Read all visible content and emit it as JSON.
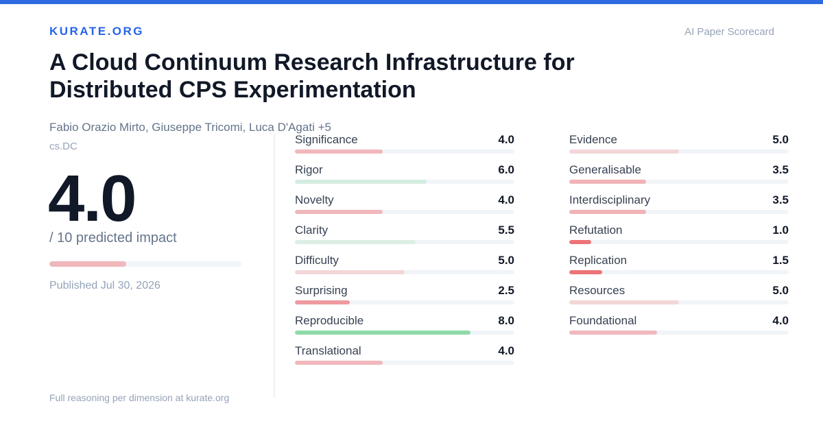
{
  "header": {
    "brand": "KURATE.ORG",
    "tagline": "AI Paper Scorecard"
  },
  "paper": {
    "title": "A Cloud Continuum Research Infrastructure for Distributed CPS Experimentation",
    "authors": "Fabio Orazio Mirto, Giuseppe Tricomi, Luca D'Agati +5",
    "category": "cs.DC",
    "published": "Published Jul 30, 2026"
  },
  "score": {
    "value": {
      "value": 4,
      "label": "4.0"
    },
    "caption": "/ 10 predicted impact",
    "xlim": [
      0,
      10
    ],
    "color": "#f0b8bc"
  },
  "dimensions": {
    "xlim": [
      0,
      10
    ],
    "columns": [
      [
        {
          "name": "Significance",
          "value": 4,
          "label": "4.0",
          "color": "#f0b8bc"
        },
        {
          "name": "Rigor",
          "value": 6,
          "label": "6.0",
          "color": "#d3ede0"
        },
        {
          "name": "Novelty",
          "value": 4,
          "label": "4.0",
          "color": "#f0b8bc"
        },
        {
          "name": "Clarity",
          "value": 5.5,
          "label": "5.5",
          "color": "#dcefe5"
        },
        {
          "name": "Difficulty",
          "value": 5,
          "label": "5.0",
          "color": "#f2d6d8"
        },
        {
          "name": "Surprising",
          "value": 2.5,
          "label": "2.5",
          "color": "#ee9a9f"
        },
        {
          "name": "Reproducible",
          "value": 8,
          "label": "8.0",
          "color": "#8fdba9"
        },
        {
          "name": "Translational",
          "value": 4,
          "label": "4.0",
          "color": "#f0b8bc"
        }
      ],
      [
        {
          "name": "Evidence",
          "value": 5,
          "label": "5.0",
          "color": "#f2d6d8"
        },
        {
          "name": "Generalisable",
          "value": 3.5,
          "label": "3.5",
          "color": "#f0b3b6"
        },
        {
          "name": "Interdisciplinary",
          "value": 3.5,
          "label": "3.5",
          "color": "#f0b3b6"
        },
        {
          "name": "Refutation",
          "value": 1,
          "label": "1.0",
          "color": "#ec7479"
        },
        {
          "name": "Replication",
          "value": 1.5,
          "label": "1.5",
          "color": "#ec7479"
        },
        {
          "name": "Resources",
          "value": 5,
          "label": "5.0",
          "color": "#f2d6d8"
        },
        {
          "name": "Foundational",
          "value": 4,
          "label": "4.0",
          "color": "#f0b8bc"
        }
      ]
    ]
  },
  "footer": "Full reasoning per dimension at kurate.org"
}
